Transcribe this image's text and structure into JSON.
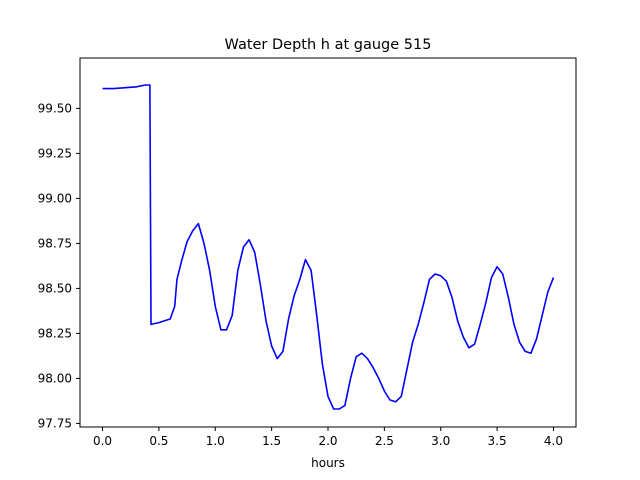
{
  "chart_data": {
    "type": "line",
    "title": "Water Depth h at gauge 515",
    "xlabel": "hours",
    "ylabel": "",
    "xlim": [
      -0.2,
      4.2
    ],
    "ylim": [
      97.73,
      99.78
    ],
    "xticks": [
      0.0,
      0.5,
      1.0,
      1.5,
      2.0,
      2.5,
      3.0,
      3.5,
      4.0
    ],
    "xtick_labels": [
      "0.0",
      "0.5",
      "1.0",
      "1.5",
      "2.0",
      "2.5",
      "3.0",
      "3.5",
      "4.0"
    ],
    "yticks": [
      97.75,
      98.0,
      98.25,
      98.5,
      98.75,
      99.0,
      99.25,
      99.5
    ],
    "ytick_labels": [
      "97.75",
      "98.00",
      "98.25",
      "98.50",
      "98.75",
      "99.00",
      "99.25",
      "99.50"
    ],
    "grid": false,
    "series": [
      {
        "color": "#0000ff",
        "x": [
          0.0,
          0.1,
          0.2,
          0.3,
          0.38,
          0.42,
          0.425,
          0.43,
          0.5,
          0.55,
          0.6,
          0.64,
          0.66,
          0.7,
          0.75,
          0.8,
          0.85,
          0.9,
          0.95,
          1.0,
          1.05,
          1.1,
          1.15,
          1.2,
          1.25,
          1.3,
          1.35,
          1.4,
          1.45,
          1.5,
          1.55,
          1.6,
          1.65,
          1.7,
          1.75,
          1.8,
          1.85,
          1.9,
          1.95,
          2.0,
          2.05,
          2.1,
          2.15,
          2.2,
          2.25,
          2.3,
          2.35,
          2.4,
          2.45,
          2.5,
          2.55,
          2.6,
          2.65,
          2.7,
          2.75,
          2.8,
          2.85,
          2.9,
          2.95,
          3.0,
          3.05,
          3.1,
          3.15,
          3.2,
          3.25,
          3.3,
          3.35,
          3.4,
          3.45,
          3.5,
          3.55,
          3.6,
          3.65,
          3.7,
          3.75,
          3.8,
          3.85,
          3.9,
          3.95,
          4.0
        ],
        "y": [
          99.61,
          99.61,
          99.615,
          99.62,
          99.63,
          99.63,
          98.95,
          98.3,
          98.31,
          98.32,
          98.33,
          98.4,
          98.55,
          98.65,
          98.76,
          98.82,
          98.86,
          98.75,
          98.6,
          98.4,
          98.27,
          98.27,
          98.35,
          98.6,
          98.73,
          98.77,
          98.7,
          98.52,
          98.32,
          98.18,
          98.11,
          98.15,
          98.33,
          98.46,
          98.55,
          98.66,
          98.6,
          98.35,
          98.08,
          97.9,
          97.83,
          97.83,
          97.85,
          98.0,
          98.12,
          98.14,
          98.11,
          98.06,
          98.0,
          97.93,
          97.88,
          97.87,
          97.9,
          98.05,
          98.2,
          98.3,
          98.42,
          98.55,
          98.58,
          98.57,
          98.54,
          98.45,
          98.32,
          98.23,
          98.17,
          98.19,
          98.3,
          98.42,
          98.56,
          98.62,
          98.58,
          98.45,
          98.3,
          98.2,
          98.15,
          98.14,
          98.22,
          98.35,
          98.48,
          98.56
        ]
      }
    ]
  }
}
